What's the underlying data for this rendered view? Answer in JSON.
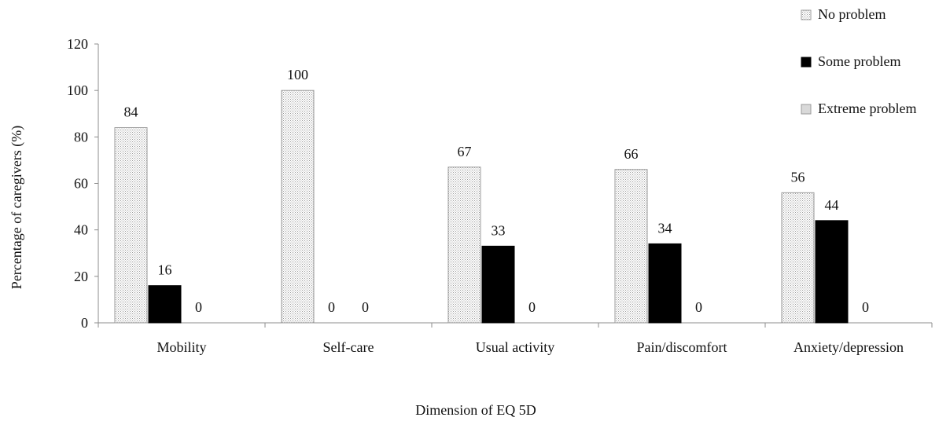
{
  "chart_data": {
    "type": "bar",
    "xlabel": "Dimension of EQ 5D",
    "ylabel": "Percentage of caregivers (%)",
    "ylim": [
      0,
      120
    ],
    "yticks": [
      0,
      20,
      40,
      60,
      80,
      100,
      120
    ],
    "categories": [
      "Mobility",
      "Self-care",
      "Usual activity",
      "Pain/discomfort",
      "Anxiety/depression"
    ],
    "series": [
      {
        "name": "No problem",
        "values": [
          84,
          100,
          67,
          66,
          56
        ],
        "fill": "dotted-light-gray"
      },
      {
        "name": "Some problem",
        "values": [
          16,
          0,
          33,
          34,
          44
        ],
        "color": "#000000"
      },
      {
        "name": "Extreme problem",
        "values": [
          0,
          0,
          0,
          0,
          0
        ],
        "color": "#d9d9d9"
      }
    ],
    "data_labels": true,
    "gridlines": false,
    "legend_position": "top-right"
  }
}
